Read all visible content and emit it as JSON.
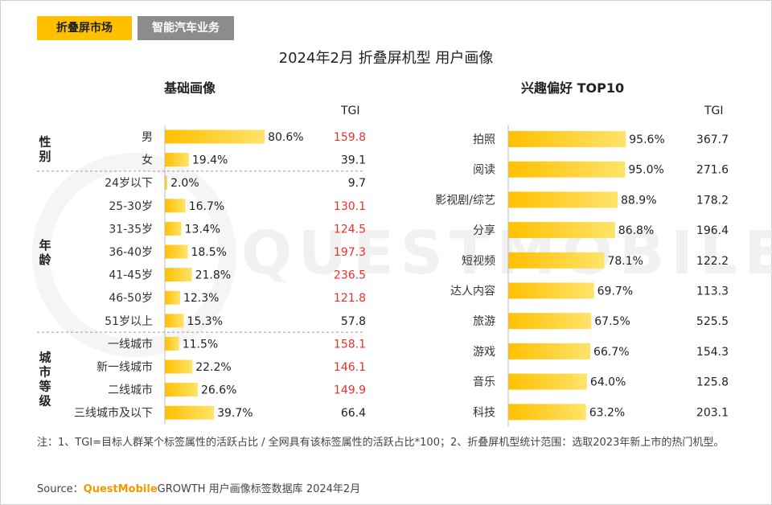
{
  "tabs": [
    {
      "label": "折叠屏市场",
      "active": true
    },
    {
      "label": "智能汽车业务",
      "active": false
    }
  ],
  "title": "2024年2月 折叠屏机型 用户画像",
  "watermark": "QUESTMOBILE",
  "colors": {
    "bar_start": "#ffc000",
    "bar_end": "#ffe36a",
    "tgi_high": "#e8312b",
    "tgi_normal": "#222222",
    "divider": "#9a9a9a"
  },
  "chart_data": [
    {
      "type": "bar",
      "orientation": "horizontal",
      "title": "基础画像",
      "tgi_label": "TGI",
      "xlim": [
        0,
        100
      ],
      "groups": [
        {
          "name": "性别",
          "categories": [
            "男",
            "女"
          ],
          "values": [
            80.6,
            19.4
          ],
          "tgi": [
            159.8,
            39.1
          ],
          "tgi_high": [
            true,
            false
          ]
        },
        {
          "name": "年龄",
          "categories": [
            "24岁以下",
            "25-30岁",
            "31-35岁",
            "36-40岁",
            "41-45岁",
            "46-50岁",
            "51岁以上"
          ],
          "values": [
            2.0,
            16.7,
            13.4,
            18.5,
            21.8,
            12.3,
            15.3
          ],
          "tgi": [
            9.7,
            130.1,
            124.5,
            197.3,
            236.5,
            121.8,
            57.8
          ],
          "tgi_high": [
            false,
            true,
            true,
            true,
            true,
            true,
            false
          ]
        },
        {
          "name": "城市等级",
          "categories": [
            "一线城市",
            "新一线城市",
            "二线城市",
            "三线城市及以下"
          ],
          "values": [
            11.5,
            22.2,
            26.6,
            39.7
          ],
          "tgi": [
            158.1,
            146.1,
            149.9,
            66.4
          ],
          "tgi_high": [
            true,
            true,
            true,
            false
          ]
        }
      ]
    },
    {
      "type": "bar",
      "orientation": "horizontal",
      "title": "兴趣偏好 TOP10",
      "tgi_label": "TGI",
      "xlim": [
        0,
        100
      ],
      "categories": [
        "拍照",
        "阅读",
        "影视剧/综艺",
        "分享",
        "短视频",
        "达人内容",
        "旅游",
        "游戏",
        "音乐",
        "科技"
      ],
      "values": [
        95.6,
        95.0,
        88.9,
        86.8,
        78.1,
        69.7,
        67.5,
        66.7,
        64.0,
        63.2
      ],
      "tgi": [
        367.7,
        271.6,
        178.2,
        196.4,
        122.2,
        113.3,
        525.5,
        154.3,
        125.8,
        203.1
      ]
    }
  ],
  "note": "注：1、TGI=目标人群某个标签属性的活跃占比 / 全网具有该标签属性的活跃占比*100；2、折叠屏机型统计范围：选取2023年新上市的热门机型。",
  "source": {
    "prefix": "Source：",
    "brand": "QuestMobile",
    "suffix": "GROWTH 用户画像标签数据库 2024年2月"
  }
}
